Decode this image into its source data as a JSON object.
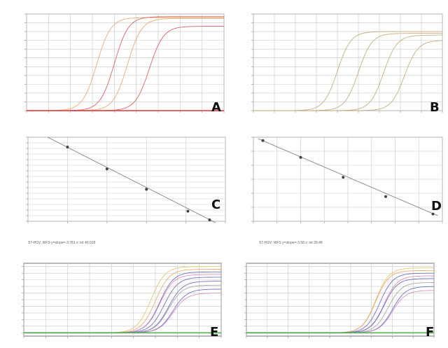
{
  "figure": {
    "panel_letters": [
      "A",
      "B",
      "C",
      "D",
      "E",
      "F"
    ],
    "equations": {
      "C": "ST-HSV: WFS y=slope=-3.781 x: int 40.028",
      "D": "ST-HSV: WFS y=slope=-3.58 x: int 39.48"
    }
  },
  "colors": {
    "grid": "#c8c8c8",
    "frame": "#888888",
    "baseline_red": "#e23b3b",
    "orange": "#e8a060",
    "red": "#d24a4a",
    "blue": "#5a5ab8",
    "green": "#4fb04f",
    "pink": "#d080c0",
    "yellow": "#e0c060",
    "gray": "#999999"
  },
  "chart_data": [
    {
      "panel": "A",
      "type": "line",
      "xlim": [
        0,
        45
      ],
      "ylim": [
        0,
        1100
      ],
      "x_ticks": [
        0,
        5,
        10,
        15,
        20,
        25,
        30,
        35,
        40,
        45
      ],
      "y_ticks": [
        0,
        100,
        200,
        300,
        400,
        500,
        600,
        700,
        800,
        900,
        1000,
        1100
      ],
      "series": [
        {
          "color": "#e8a060",
          "midpoint": 16,
          "max": 1060
        },
        {
          "color": "#d24a4a",
          "midpoint": 20,
          "max": 1070
        },
        {
          "color": "#e0a060",
          "midpoint": 23,
          "max": 1050
        },
        {
          "color": "#d24a4a",
          "midpoint": 28,
          "max": 960
        },
        {
          "color": "#e23b3b",
          "midpoint": 99,
          "max": 0
        }
      ]
    },
    {
      "panel": "B",
      "type": "line",
      "xlim": [
        0,
        45
      ],
      "ylim": [
        0,
        1100
      ],
      "x_ticks": [
        0,
        5,
        10,
        15,
        20,
        25,
        30,
        35,
        40,
        45
      ],
      "y_ticks": [
        0,
        100,
        200,
        300,
        400,
        500,
        600,
        700,
        800,
        900,
        1000,
        1100
      ],
      "series": [
        {
          "color": "#c0a070",
          "midpoint": 20,
          "max": 900
        },
        {
          "color": "#c0a070",
          "midpoint": 25,
          "max": 880
        },
        {
          "color": "#c0a070",
          "midpoint": 31,
          "max": 860
        },
        {
          "color": "#c0a070",
          "midpoint": 36,
          "max": 800
        }
      ]
    },
    {
      "panel": "C",
      "type": "scatter",
      "xlim": [
        0,
        10
      ],
      "ylim": [
        10,
        40
      ],
      "x_ticks": [
        0,
        2,
        4,
        6,
        8,
        10
      ],
      "y_ticks": [
        10,
        12,
        14,
        16,
        18,
        20,
        22,
        24,
        26,
        28,
        30,
        32,
        34,
        36,
        38,
        40
      ],
      "points": [
        {
          "x": 2.0,
          "y": 36.5
        },
        {
          "x": 4.0,
          "y": 28.7
        },
        {
          "x": 6.0,
          "y": 21.4
        },
        {
          "x": 8.1,
          "y": 13.6
        },
        {
          "x": 9.2,
          "y": 10.5
        }
      ],
      "fit": [
        [
          1.0,
          40.0
        ],
        [
          9.5,
          9.5
        ]
      ]
    },
    {
      "panel": "D",
      "type": "scatter",
      "xlim": [
        0,
        8
      ],
      "ylim": [
        10,
        40
      ],
      "x_ticks": [
        0,
        1,
        2,
        3,
        4,
        5,
        6,
        7,
        8
      ],
      "y_ticks": [
        10,
        15,
        20,
        25,
        30,
        35,
        40
      ],
      "points": [
        {
          "x": 0.4,
          "y": 38.8
        },
        {
          "x": 2.0,
          "y": 32.8
        },
        {
          "x": 3.8,
          "y": 25.7
        },
        {
          "x": 5.6,
          "y": 18.8
        },
        {
          "x": 7.6,
          "y": 12.6
        }
      ],
      "fit": [
        [
          0.2,
          39.5
        ],
        [
          7.8,
          12.0
        ]
      ]
    },
    {
      "panel": "E",
      "type": "line",
      "xlim": [
        0,
        45
      ],
      "ylim": [
        -5,
        105
      ],
      "x_ticks": [
        0,
        5,
        10,
        15,
        20,
        25,
        30,
        35,
        40,
        45
      ],
      "y_ticks": [
        0,
        10,
        20,
        30,
        40,
        50,
        60,
        70,
        80,
        90,
        100
      ],
      "series": [
        {
          "color": "#e0c060",
          "midpoint": 29,
          "max": 100
        },
        {
          "color": "#e8a060",
          "midpoint": 30,
          "max": 96
        },
        {
          "color": "#5a5ab8",
          "midpoint": 31,
          "max": 92
        },
        {
          "color": "#d080c0",
          "midpoint": 31,
          "max": 88
        },
        {
          "color": "#5a5ab8",
          "midpoint": 32,
          "max": 84
        },
        {
          "color": "#5a5ab8",
          "midpoint": 33,
          "max": 78
        },
        {
          "color": "#999999",
          "midpoint": 33,
          "max": 72
        },
        {
          "color": "#5a5ab8",
          "midpoint": 34,
          "max": 66
        },
        {
          "color": "#d080c0",
          "midpoint": 34,
          "max": 60
        },
        {
          "color": "#4fb04f",
          "midpoint": 99,
          "max": 0
        }
      ]
    },
    {
      "panel": "F",
      "type": "line",
      "xlim": [
        0,
        45
      ],
      "ylim": [
        -5,
        105
      ],
      "x_ticks": [
        0,
        5,
        10,
        15,
        20,
        25,
        30,
        35,
        40,
        45
      ],
      "y_ticks": [
        0,
        10,
        20,
        30,
        40,
        50,
        60,
        70,
        80,
        90,
        100
      ],
      "series": [
        {
          "color": "#e0c060",
          "midpoint": 31,
          "max": 98
        },
        {
          "color": "#e8a060",
          "midpoint": 31,
          "max": 94
        },
        {
          "color": "#5a5ab8",
          "midpoint": 32,
          "max": 90
        },
        {
          "color": "#d080c0",
          "midpoint": 33,
          "max": 86
        },
        {
          "color": "#5a5ab8",
          "midpoint": 33,
          "max": 82
        },
        {
          "color": "#999999",
          "midpoint": 34,
          "max": 76
        },
        {
          "color": "#5a5ab8",
          "midpoint": 35,
          "max": 70
        },
        {
          "color": "#d080c0",
          "midpoint": 35,
          "max": 64
        },
        {
          "color": "#4fb04f",
          "midpoint": 99,
          "max": 0
        }
      ]
    }
  ]
}
